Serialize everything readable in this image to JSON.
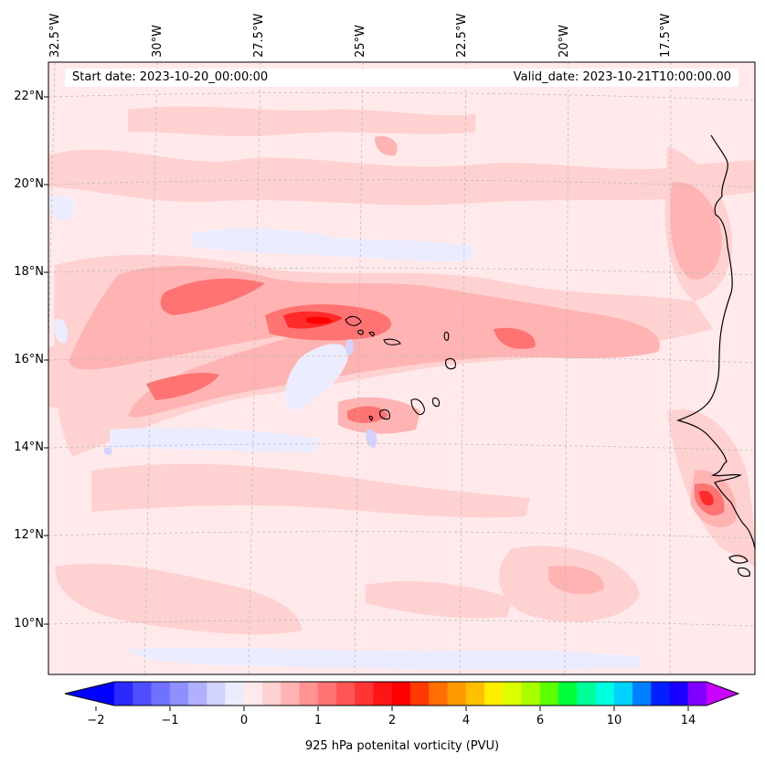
{
  "header": {
    "start_date": "Start date: 2023-10-20_00:00:00",
    "valid_date": "Valid_date: 2023-10-21T10:00:00.00"
  },
  "map": {
    "extent": {
      "lon": [
        -32.5,
        -15.5
      ],
      "lat": [
        9,
        23
      ]
    },
    "lat_labels": [
      "22°N",
      "20°N",
      "18°N",
      "16°N",
      "14°N",
      "12°N",
      "10°N"
    ],
    "lon_labels": [
      "32.5°W",
      "30°W",
      "27.5°W",
      "25°W",
      "22.5°W",
      "20°W",
      "17.5°W"
    ],
    "background_color": "#ffe9ea"
  },
  "colorbar": {
    "title": "925 hPa potenital vorticity (PVU)",
    "tick_labels": [
      "−2",
      "−1",
      "0",
      "1",
      "2",
      "4",
      "6",
      "10",
      "14"
    ],
    "colors": [
      "#0000ff",
      "#2a2aff",
      "#4f4fff",
      "#7171ff",
      "#8f8fff",
      "#b0b0ff",
      "#d3d3ff",
      "#ececff",
      "#ffe9ea",
      "#ffd1d1",
      "#ffb3b3",
      "#ff9393",
      "#ff7373",
      "#ff5555",
      "#ff3535",
      "#ff1515",
      "#ff0000",
      "#ff3a00",
      "#ff6e00",
      "#ff9a00",
      "#ffc000",
      "#ffee00",
      "#dcff00",
      "#a8ff00",
      "#5cff00",
      "#00ff3a",
      "#00ff99",
      "#00ffdf",
      "#00d3ff",
      "#0080ff",
      "#0020ff",
      "#1a00ff",
      "#8000ff",
      "#c800ff"
    ]
  }
}
